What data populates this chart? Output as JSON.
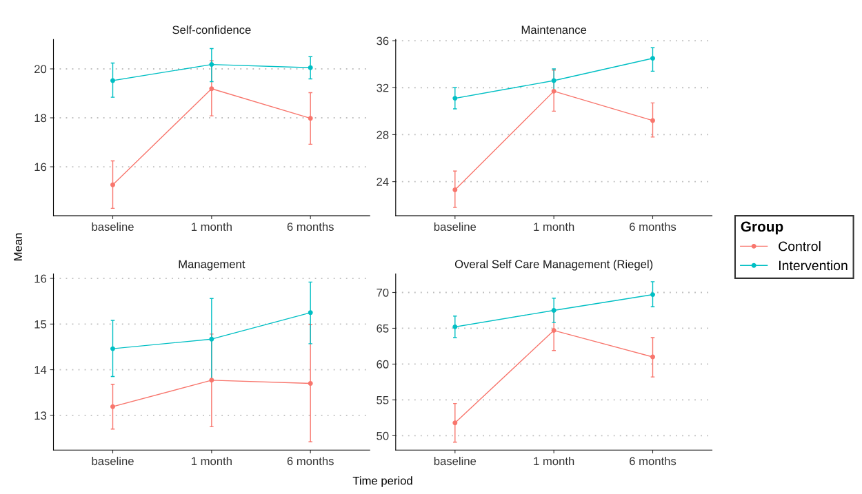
{
  "chart_data": [
    {
      "type": "line",
      "title": "Self-confidence",
      "ylabel": "Mean",
      "categories": [
        "baseline",
        "1 month",
        "6 months"
      ],
      "ylim": [
        14.0,
        21.2
      ],
      "yticks": [
        16,
        18,
        20
      ],
      "grid": "y",
      "marker": "circle",
      "line_style": "solid",
      "legend": "right",
      "legend_title": "Group",
      "series": [
        {
          "name": "Control",
          "color": "#f8766d",
          "values": [
            15.26,
            19.19,
            17.98
          ],
          "errors": [
            [
              14.3,
              16.24
            ],
            [
              18.08,
              20.33
            ],
            [
              16.92,
              19.03
            ]
          ]
        },
        {
          "name": "Intervention",
          "color": "#00bfc4",
          "values": [
            19.52,
            20.18,
            20.05
          ],
          "errors": [
            [
              18.84,
              20.24
            ],
            [
              19.48,
              20.83
            ],
            [
              19.59,
              20.5
            ]
          ]
        }
      ]
    },
    {
      "type": "line",
      "title": "Maintenance",
      "categories": [
        "baseline",
        "1 month",
        "6 months"
      ],
      "ylim": [
        21.1,
        36.1
      ],
      "yticks": [
        24,
        28,
        32,
        36
      ],
      "grid": "y",
      "marker": "circle",
      "line_style": "solid",
      "series": [
        {
          "color": "#f8766d",
          "values": [
            23.3,
            31.7,
            29.2
          ],
          "errors": [
            [
              21.8,
              24.9
            ],
            [
              30.0,
              33.5
            ],
            [
              27.8,
              30.7
            ]
          ]
        },
        {
          "color": "#00bfc4",
          "values": [
            31.1,
            32.6,
            34.5
          ],
          "errors": [
            [
              30.2,
              32.0
            ],
            [
              31.7,
              33.6
            ],
            [
              33.4,
              35.4
            ]
          ]
        }
      ]
    },
    {
      "type": "line",
      "title": "Management",
      "xlabel": "Time period",
      "categories": [
        "baseline",
        "1 month",
        "6 months"
      ],
      "ylim": [
        12.24,
        16.1
      ],
      "yticks": [
        13,
        14,
        15,
        16
      ],
      "grid": "y",
      "marker": "circle",
      "line_style": "solid",
      "series": [
        {
          "color": "#f8766d",
          "values": [
            13.19,
            13.77,
            13.7
          ],
          "errors": [
            [
              12.7,
              13.68
            ],
            [
              12.75,
              14.78
            ],
            [
              12.42,
              14.99
            ]
          ]
        },
        {
          "color": "#00bfc4",
          "values": [
            14.46,
            14.67,
            15.25
          ],
          "errors": [
            [
              13.85,
              15.08
            ],
            [
              13.79,
              15.56
            ],
            [
              14.57,
              15.92
            ]
          ]
        }
      ]
    },
    {
      "type": "line",
      "title": "Overal Self Care Management (Riegel)",
      "categories": [
        "baseline",
        "1 month",
        "6 months"
      ],
      "ylim": [
        48.0,
        72.6
      ],
      "yticks": [
        50,
        55,
        60,
        65,
        70
      ],
      "grid": "y",
      "marker": "circle",
      "line_style": "solid",
      "series": [
        {
          "color": "#f8766d",
          "values": [
            51.8,
            64.7,
            61.0
          ],
          "errors": [
            [
              49.1,
              54.5
            ],
            [
              61.9,
              67.6
            ],
            [
              58.2,
              63.7
            ]
          ]
        },
        {
          "color": "#00bfc4",
          "values": [
            65.2,
            67.5,
            69.7
          ],
          "errors": [
            [
              63.7,
              66.7
            ],
            [
              65.8,
              69.2
            ],
            [
              68.0,
              71.5
            ]
          ]
        }
      ]
    }
  ]
}
